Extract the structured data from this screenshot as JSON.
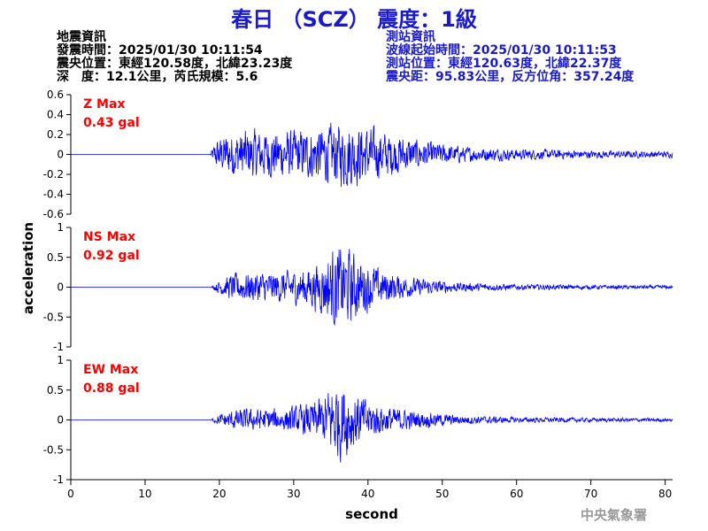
{
  "header": {
    "title": "春日 （SCZ） 震度：1級"
  },
  "event_info": {
    "heading": "地震資訊",
    "origin_time": "發震時間：2025/01/30 10:11:54",
    "epicenter": "震央位置：東經120.58度，北緯23.23度",
    "depth_magnitude": "深　度：12.1公里，芮氏規模：5.6"
  },
  "station_info": {
    "heading": "測站資訊",
    "wave_start": "波線起始時間：2025/01/30 10:11:53",
    "station_location": "測站位置：東經120.63度，北緯22.37度",
    "distance_azimuth": "震央距：95.83公里，反方位角：357.24度"
  },
  "agency": "中央氣象署",
  "colors": {
    "title": "#1a1acc",
    "trace": "#0000ff",
    "label": "#ff0000",
    "axis": "#000000"
  },
  "chart_data": {
    "type": "line",
    "xlabel": "second",
    "ylabel": "acceleration",
    "xlim": [
      0,
      81
    ],
    "xticks": [
      "0",
      "10",
      "20",
      "30",
      "40",
      "50",
      "60",
      "70",
      "80"
    ],
    "panels": [
      {
        "name": "Z Max",
        "max_label": "0.43 gal",
        "ylim": [
          -0.6,
          0.6
        ],
        "yticks": [
          "0.6",
          "0.4",
          "0.2",
          "0",
          "-0.2",
          "-0.4",
          "-0.6"
        ],
        "onset": 18.8,
        "envelope": [
          [
            18.8,
            0.02
          ],
          [
            19.5,
            0.18
          ],
          [
            21,
            0.28
          ],
          [
            24,
            0.32
          ],
          [
            28,
            0.3
          ],
          [
            32,
            0.32
          ],
          [
            35,
            0.38
          ],
          [
            37.5,
            0.43
          ],
          [
            40,
            0.35
          ],
          [
            44,
            0.25
          ],
          [
            48,
            0.16
          ],
          [
            53,
            0.1
          ],
          [
            60,
            0.07
          ],
          [
            70,
            0.05
          ],
          [
            81,
            0.04
          ]
        ]
      },
      {
        "name": "NS Max",
        "max_label": "0.92 gal",
        "ylim": [
          -1,
          1
        ],
        "yticks": [
          "1",
          "0.5",
          "0",
          "-0.5",
          "-1"
        ],
        "onset": 19.0,
        "envelope": [
          [
            19,
            0.03
          ],
          [
            20,
            0.15
          ],
          [
            22,
            0.3
          ],
          [
            25,
            0.33
          ],
          [
            29,
            0.33
          ],
          [
            32,
            0.42
          ],
          [
            34,
            0.6
          ],
          [
            35.5,
            0.88
          ],
          [
            37.5,
            0.82
          ],
          [
            39,
            0.6
          ],
          [
            42,
            0.35
          ],
          [
            46,
            0.2
          ],
          [
            52,
            0.1
          ],
          [
            60,
            0.06
          ],
          [
            70,
            0.045
          ],
          [
            81,
            0.04
          ]
        ]
      },
      {
        "name": "EW Max",
        "max_label": "0.88 gal",
        "ylim": [
          -1,
          1
        ],
        "yticks": [
          "1",
          "0.5",
          "0",
          "-0.5",
          "-1"
        ],
        "onset": 19.0,
        "envelope": [
          [
            19,
            0.03
          ],
          [
            20,
            0.12
          ],
          [
            22,
            0.22
          ],
          [
            25,
            0.24
          ],
          [
            29,
            0.25
          ],
          [
            32,
            0.35
          ],
          [
            34,
            0.5
          ],
          [
            35.5,
            0.88
          ],
          [
            37.5,
            0.75
          ],
          [
            39,
            0.5
          ],
          [
            42,
            0.3
          ],
          [
            46,
            0.2
          ],
          [
            52,
            0.1
          ],
          [
            60,
            0.06
          ],
          [
            70,
            0.045
          ],
          [
            81,
            0.04
          ]
        ]
      }
    ]
  }
}
